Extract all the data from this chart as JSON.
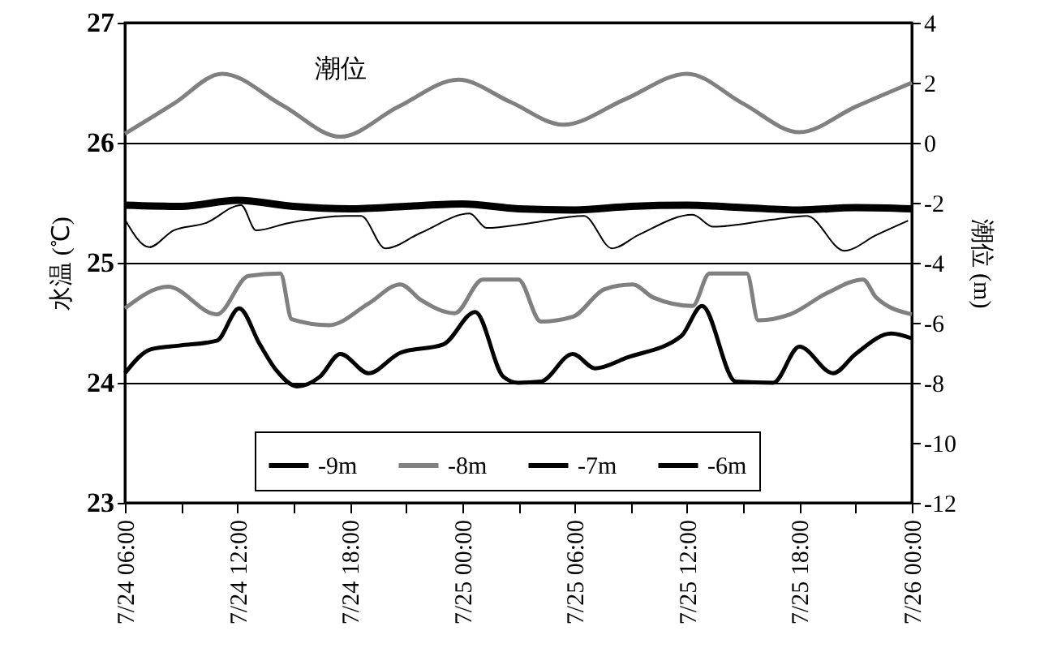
{
  "chart_data": {
    "type": "line",
    "ylabel": "水温 (℃)",
    "y2label": "潮位 (m)",
    "xlim": [
      "--07-24T06:00",
      "--07-26T00:00"
    ],
    "xticks": [
      {
        "value": "--07-24T06:00",
        "label": "7/24 06:00"
      },
      {
        "value": "--07-24T09:00",
        "label": null
      },
      {
        "value": "--07-24T12:00",
        "label": "7/24 12:00"
      },
      {
        "value": "--07-24T15:00",
        "label": null
      },
      {
        "value": "--07-24T18:00",
        "label": "7/24 18:00"
      },
      {
        "value": "--07-24T21:00",
        "label": null
      },
      {
        "value": "--07-25T00:00",
        "label": "7/25 00:00"
      },
      {
        "value": "--07-25T03:00",
        "label": null
      },
      {
        "value": "--07-25T06:00",
        "label": "7/25 06:00"
      },
      {
        "value": "--07-25T09:00",
        "label": null
      },
      {
        "value": "--07-25T12:00",
        "label": "7/25 12:00"
      },
      {
        "value": "--07-25T15:00",
        "label": null
      },
      {
        "value": "--07-25T18:00",
        "label": "7/25 18:00"
      },
      {
        "value": "--07-25T21:00",
        "label": null
      },
      {
        "value": "--07-26T00:00",
        "label": "7/26 00:00"
      }
    ],
    "ylim": [
      23,
      27
    ],
    "yticks": [
      23,
      24,
      25,
      26,
      27
    ],
    "y2lim": [
      -12,
      4
    ],
    "y2ticks": [
      -12,
      -10,
      -8,
      -6,
      -4,
      -2,
      0,
      2,
      4
    ],
    "grid": "y",
    "legend": "bottom",
    "series": [
      {
        "name": "-9m",
        "color": "#000000",
        "x": [
          "--07-24T06:00",
          "--07-24T07:24",
          "--07-24T08:54",
          "--07-24T10:54",
          "--07-24T12:06",
          "--07-24T13:12",
          "--07-24T14:06",
          "--07-24T15:12",
          "--07-24T16:24",
          "--07-24T17:30",
          "--07-24T19:00",
          "--07-24T20:42",
          "--07-24T23:00",
          "--07-25T00:42",
          "--07-25T02:12",
          "--07-25T03:00",
          "--07-25T04:12",
          "--07-25T05:54",
          "--07-25T07:06",
          "--07-25T08:48",
          "--07-25T11:42",
          "--07-25T12:48",
          "--07-25T14:36",
          "--07-25T16:36",
          "--07-25T18:00",
          "--07-25T19:48",
          "--07-25T21:00",
          "--07-25T22:54",
          "--07-26T00:00"
        ],
        "values": [
          24.08,
          24.28,
          24.31,
          24.35,
          24.62,
          24.32,
          24.1,
          23.97,
          24.05,
          24.24,
          24.08,
          24.25,
          24.32,
          24.59,
          24.05,
          24.0,
          24.01,
          24.24,
          24.12,
          24.21,
          24.39,
          24.64,
          24.01,
          24.0,
          24.3,
          24.08,
          24.24,
          24.41,
          24.37
        ]
      },
      {
        "name": "-8m",
        "color": "#808080",
        "x": [
          "--07-24T06:00",
          "--07-24T08:18",
          "--07-24T10:54",
          "--07-24T12:36",
          "--07-24T14:18",
          "--07-24T14:54",
          "--07-24T16:54",
          "--07-24T19:00",
          "--07-24T20:42",
          "--07-24T21:48",
          "--07-24T23:36",
          "--07-25T01:06",
          "--07-25T03:00",
          "--07-25T04:12",
          "--07-25T05:54",
          "--07-25T07:36",
          "--07-25T09:06",
          "--07-25T10:12",
          "--07-25T12:18",
          "--07-25T13:12",
          "--07-25T15:12",
          "--07-25T15:48",
          "--07-25T17:30",
          "--07-25T19:30",
          "--07-25T21:24",
          "--07-25T22:06",
          "--07-26T00:00"
        ],
        "values": [
          24.62,
          24.8,
          24.57,
          24.89,
          24.91,
          24.53,
          24.48,
          24.66,
          24.82,
          24.69,
          24.58,
          24.86,
          24.86,
          24.51,
          24.55,
          24.78,
          24.82,
          24.71,
          24.64,
          24.91,
          24.91,
          24.52,
          24.57,
          24.75,
          24.86,
          24.71,
          24.57
        ]
      },
      {
        "name": "-7m",
        "color": "#000000",
        "x": [
          "--07-24T06:00",
          "--07-24T07:18",
          "--07-24T08:36",
          "--07-24T10:18",
          "--07-24T12:12",
          "--07-24T13:00",
          "--07-24T14:42",
          "--07-24T17:48",
          "--07-24T18:36",
          "--07-24T19:54",
          "--07-24T21:48",
          "--07-25T00:24",
          "--07-25T01:18",
          "--07-25T03:36",
          "--07-25T06:30",
          "--07-25T08:00",
          "--07-25T09:24",
          "--07-25T12:18",
          "--07-25T13:24",
          "--07-25T16:36",
          "--07-25T18:24",
          "--07-25T20:24",
          "--07-25T22:06",
          "--07-25T23:48"
        ],
        "values": [
          25.36,
          25.13,
          25.27,
          25.33,
          25.48,
          25.27,
          25.33,
          25.39,
          25.39,
          25.12,
          25.25,
          25.41,
          25.29,
          25.33,
          25.39,
          25.12,
          25.23,
          25.4,
          25.3,
          25.36,
          25.39,
          25.1,
          25.23,
          25.35
        ]
      },
      {
        "name": "-6m",
        "color": "#000000",
        "x": [
          "--07-24T06:00",
          "--07-24T09:00",
          "--07-24T12:00",
          "--07-24T15:00",
          "--07-24T18:00",
          "--07-24T21:00",
          "--07-25T00:00",
          "--07-25T03:00",
          "--07-25T06:00",
          "--07-25T09:00",
          "--07-25T12:00",
          "--07-25T15:00",
          "--07-25T18:00",
          "--07-25T21:00",
          "--07-26T00:00"
        ],
        "values": [
          25.48,
          25.47,
          25.52,
          25.47,
          25.45,
          25.47,
          25.49,
          25.45,
          25.44,
          25.47,
          25.48,
          25.46,
          25.44,
          25.46,
          25.45
        ]
      },
      {
        "name": "潮位",
        "color": "#808080",
        "axis": "y2",
        "x": [
          "--07-24T06:00",
          "--07-24T08:36",
          "--07-24T11:12",
          "--07-24T14:24",
          "--07-24T17:30",
          "--07-24T20:36",
          "--07-24T23:48",
          "--07-25T02:36",
          "--07-25T05:24",
          "--07-25T08:42",
          "--07-25T12:00",
          "--07-25T15:00",
          "--07-25T18:00",
          "--07-25T21:00",
          "--07-26T00:00"
        ],
        "values": [
          0.3,
          1.3,
          2.3,
          1.25,
          0.2,
          1.2,
          2.1,
          1.35,
          0.6,
          1.45,
          2.3,
          1.3,
          0.35,
          1.2,
          2.0
        ]
      }
    ]
  }
}
